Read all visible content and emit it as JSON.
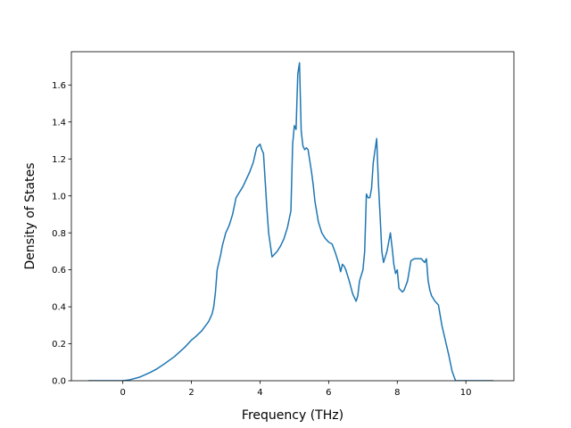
{
  "chart_data": {
    "type": "line",
    "title": "",
    "xlabel": "Frequency (THz)",
    "ylabel": "Density of States",
    "xlim": [
      -1.5,
      11.4
    ],
    "ylim": [
      0,
      1.78
    ],
    "xticks": [
      0,
      2,
      4,
      6,
      8,
      10
    ],
    "yticks": [
      0.0,
      0.2,
      0.4,
      0.6,
      0.8,
      1.0,
      1.2,
      1.4,
      1.6
    ],
    "ytick_labels": [
      "0.0",
      "0.2",
      "0.4",
      "0.6",
      "0.8",
      "1.0",
      "1.2",
      "1.4",
      "1.6"
    ],
    "grid": false,
    "series": [
      {
        "color": "#1f77b4",
        "x": [
          -1.0,
          0.0,
          0.2,
          0.5,
          0.8,
          1.0,
          1.2,
          1.5,
          1.8,
          2.0,
          2.1,
          2.3,
          2.5,
          2.6,
          2.65,
          2.7,
          2.75,
          2.8,
          2.85,
          2.9,
          3.0,
          3.1,
          3.2,
          3.3,
          3.5,
          3.7,
          3.8,
          3.9,
          4.0,
          4.05,
          4.1,
          4.2,
          4.25,
          4.35,
          4.5,
          4.6,
          4.7,
          4.8,
          4.9,
          4.95,
          5.0,
          5.05,
          5.1,
          5.15,
          5.2,
          5.25,
          5.3,
          5.35,
          5.4,
          5.45,
          5.5,
          5.55,
          5.6,
          5.7,
          5.8,
          5.9,
          6.0,
          6.1,
          6.2,
          6.3,
          6.35,
          6.4,
          6.45,
          6.5,
          6.6,
          6.7,
          6.8,
          6.85,
          6.9,
          7.0,
          7.05,
          7.1,
          7.15,
          7.2,
          7.25,
          7.3,
          7.4,
          7.45,
          7.5,
          7.55,
          7.6,
          7.7,
          7.8,
          7.85,
          7.9,
          7.95,
          8.0,
          8.05,
          8.1,
          8.15,
          8.2,
          8.3,
          8.4,
          8.5,
          8.6,
          8.7,
          8.8,
          8.85,
          8.9,
          8.95,
          9.0,
          9.1,
          9.2,
          9.3,
          9.4,
          9.5,
          9.6,
          9.7,
          9.75,
          9.8,
          10.0,
          10.5,
          10.8
        ],
        "y": [
          0.0,
          0.0,
          0.005,
          0.02,
          0.045,
          0.065,
          0.09,
          0.13,
          0.18,
          0.22,
          0.235,
          0.27,
          0.32,
          0.36,
          0.4,
          0.48,
          0.6,
          0.64,
          0.68,
          0.73,
          0.8,
          0.84,
          0.9,
          0.99,
          1.05,
          1.13,
          1.18,
          1.26,
          1.28,
          1.25,
          1.23,
          0.93,
          0.8,
          0.67,
          0.7,
          0.73,
          0.77,
          0.83,
          0.92,
          1.28,
          1.38,
          1.36,
          1.66,
          1.72,
          1.35,
          1.27,
          1.25,
          1.26,
          1.25,
          1.19,
          1.13,
          1.06,
          0.97,
          0.86,
          0.8,
          0.77,
          0.75,
          0.74,
          0.69,
          0.63,
          0.59,
          0.63,
          0.62,
          0.6,
          0.54,
          0.47,
          0.43,
          0.46,
          0.54,
          0.6,
          0.7,
          1.01,
          0.99,
          0.99,
          1.04,
          1.18,
          1.31,
          1.07,
          0.89,
          0.7,
          0.64,
          0.7,
          0.8,
          0.72,
          0.63,
          0.58,
          0.6,
          0.5,
          0.49,
          0.48,
          0.49,
          0.54,
          0.65,
          0.66,
          0.66,
          0.66,
          0.64,
          0.66,
          0.54,
          0.49,
          0.46,
          0.43,
          0.41,
          0.3,
          0.22,
          0.14,
          0.05,
          0.0,
          0.0,
          0.0,
          0.0,
          0.0,
          0.0
        ]
      }
    ]
  }
}
